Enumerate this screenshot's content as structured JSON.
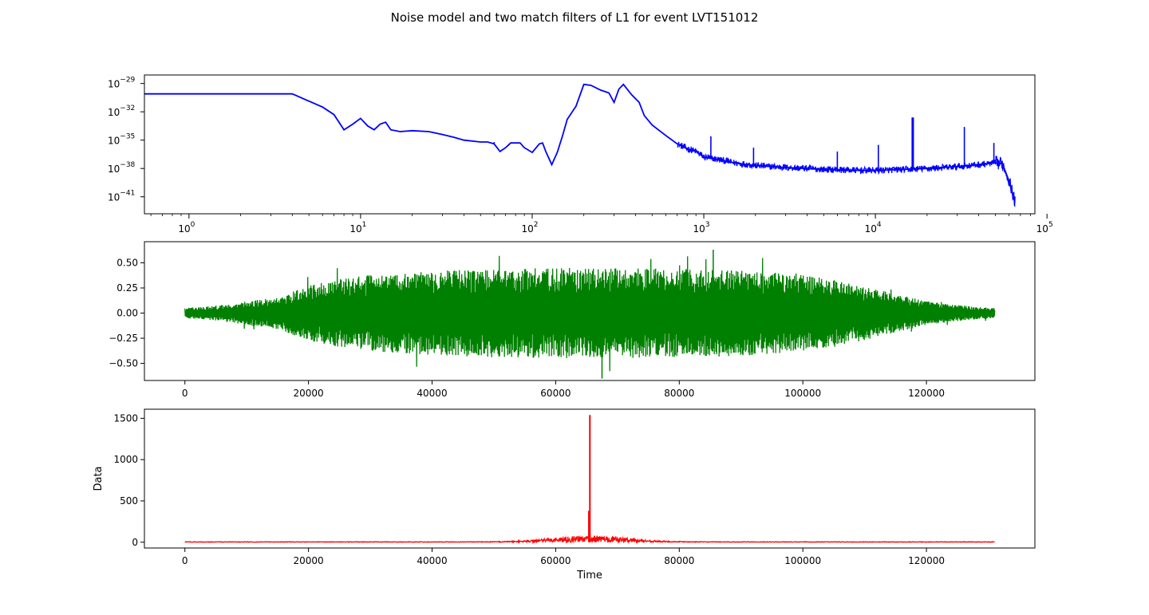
{
  "figure": {
    "title": "Noise model and two match filters of L1 for event LVT151012"
  },
  "chart_data": [
    {
      "type": "line",
      "color": "#0000ff",
      "xscale": "log",
      "yscale": "log",
      "xlim": [
        0.55,
        85000
      ],
      "ylim_exp": [
        -42.8,
        -28.1
      ],
      "x_ticks": [
        {
          "base": "10",
          "exp": "0",
          "value": 1
        },
        {
          "base": "10",
          "exp": "1",
          "value": 10
        },
        {
          "base": "10",
          "exp": "2",
          "value": 100
        },
        {
          "base": "10",
          "exp": "3",
          "value": 1000
        },
        {
          "base": "10",
          "exp": "4",
          "value": 10000
        },
        {
          "base": "10",
          "exp": "5",
          "value": 100000
        }
      ],
      "y_ticks": [
        {
          "base": "10",
          "exp": "−29",
          "value": -29
        },
        {
          "base": "10",
          "exp": "−32",
          "value": -32
        },
        {
          "base": "10",
          "exp": "−35",
          "value": -35
        },
        {
          "base": "10",
          "exp": "−38",
          "value": -38
        },
        {
          "base": "10",
          "exp": "−41",
          "value": -41
        }
      ],
      "key_points": [
        [
          0.55,
          -30.1
        ],
        [
          4,
          -30.1
        ],
        [
          6,
          -31.5
        ],
        [
          7,
          -32.3
        ],
        [
          8,
          -33.9
        ],
        [
          9,
          -33.3
        ],
        [
          10,
          -32.7
        ],
        [
          11,
          -33.5
        ],
        [
          12,
          -33.9
        ],
        [
          13,
          -33.3
        ],
        [
          14,
          -33.1
        ],
        [
          15,
          -33.9
        ],
        [
          17,
          -34.1
        ],
        [
          20,
          -34.0
        ],
        [
          25,
          -34.1
        ],
        [
          30,
          -34.4
        ],
        [
          35,
          -34.7
        ],
        [
          40,
          -35.0
        ],
        [
          50,
          -35.2
        ],
        [
          55,
          -35.2
        ],
        [
          60,
          -35.4
        ],
        [
          65,
          -36.2
        ],
        [
          70,
          -35.8
        ],
        [
          75,
          -35.3
        ],
        [
          85,
          -35.3
        ],
        [
          90,
          -35.8
        ],
        [
          100,
          -36.3
        ],
        [
          110,
          -35.4
        ],
        [
          115,
          -35.3
        ],
        [
          120,
          -36.2
        ],
        [
          130,
          -37.6
        ],
        [
          140,
          -36.3
        ],
        [
          150,
          -34.6
        ],
        [
          160,
          -32.8
        ],
        [
          180,
          -31.4
        ],
        [
          200,
          -29.1
        ],
        [
          220,
          -29.2
        ],
        [
          250,
          -29.7
        ],
        [
          280,
          -30.0
        ],
        [
          300,
          -31.0
        ],
        [
          320,
          -29.6
        ],
        [
          340,
          -29.1
        ],
        [
          380,
          -30.2
        ],
        [
          420,
          -31.0
        ],
        [
          450,
          -32.4
        ],
        [
          500,
          -33.4
        ],
        [
          600,
          -34.5
        ],
        [
          700,
          -35.4
        ],
        [
          800,
          -35.9
        ],
        [
          900,
          -36.2
        ],
        [
          1000,
          -36.8
        ],
        [
          1500,
          -37.4
        ],
        [
          2000,
          -37.7
        ],
        [
          3000,
          -37.9
        ],
        [
          5000,
          -38.1
        ],
        [
          8000,
          -38.2
        ],
        [
          10000,
          -38.2
        ],
        [
          20000,
          -38.0
        ],
        [
          30000,
          -37.8
        ],
        [
          40000,
          -37.6
        ],
        [
          50000,
          -37.4
        ],
        [
          55000,
          -37.5
        ],
        [
          60000,
          -39.3
        ],
        [
          65000,
          -41.6
        ]
      ],
      "spikes": [
        {
          "x": 60,
          "peak": -35.2
        },
        {
          "x": 1100,
          "peak": -34.6
        },
        {
          "x": 1950,
          "peak": -35.8
        },
        {
          "x": 6000,
          "peak": -36.2
        },
        {
          "x": 10400,
          "peak": -35.5
        },
        {
          "x": 16500,
          "peak": -32.6
        },
        {
          "x": 33000,
          "peak": -33.6
        },
        {
          "x": 49000,
          "peak": -35.3
        }
      ]
    },
    {
      "type": "line",
      "color": "#008000",
      "xlim": [
        -6550,
        137550
      ],
      "ylim": [
        -0.67,
        0.71
      ],
      "x_ticks": [
        0,
        20000,
        40000,
        60000,
        80000,
        100000,
        120000
      ],
      "x_tick_labels": [
        "0",
        "20000",
        "40000",
        "60000",
        "80000",
        "100000",
        "120000"
      ],
      "y_ticks": [
        0.5,
        0.25,
        0.0,
        -0.25,
        -0.5
      ],
      "y_tick_labels": [
        "0.50",
        "0.25",
        "0.00",
        "−0.25",
        "−0.50"
      ],
      "samples": 131072,
      "envelope": [
        [
          0,
          0.05
        ],
        [
          6000,
          0.08
        ],
        [
          10000,
          0.12
        ],
        [
          15000,
          0.16
        ],
        [
          20000,
          0.27
        ],
        [
          25000,
          0.34
        ],
        [
          30000,
          0.38
        ],
        [
          40000,
          0.42
        ],
        [
          50000,
          0.44
        ],
        [
          60000,
          0.45
        ],
        [
          70000,
          0.45
        ],
        [
          80000,
          0.44
        ],
        [
          90000,
          0.43
        ],
        [
          100000,
          0.38
        ],
        [
          105000,
          0.33
        ],
        [
          110000,
          0.27
        ],
        [
          115000,
          0.19
        ],
        [
          120000,
          0.12
        ],
        [
          125000,
          0.08
        ],
        [
          131000,
          0.05
        ]
      ],
      "max": 0.63,
      "min": -0.65
    },
    {
      "type": "line",
      "color": "#ff0000",
      "xlim": [
        -6550,
        137550
      ],
      "ylim": [
        -70,
        1610
      ],
      "xlabel": "Time",
      "ylabel": "Data",
      "x_ticks": [
        0,
        20000,
        40000,
        60000,
        80000,
        100000,
        120000
      ],
      "x_tick_labels": [
        "0",
        "20000",
        "40000",
        "60000",
        "80000",
        "100000",
        "120000"
      ],
      "y_ticks": [
        0,
        500,
        1000,
        1500
      ],
      "y_tick_labels": [
        "0",
        "500",
        "1000",
        "1500"
      ],
      "baseline_noise": 6,
      "bump_center": 65536,
      "bump_height": 75,
      "peak_x": 65536,
      "peak_y": 1540,
      "secondary_peak_y": 380
    }
  ]
}
